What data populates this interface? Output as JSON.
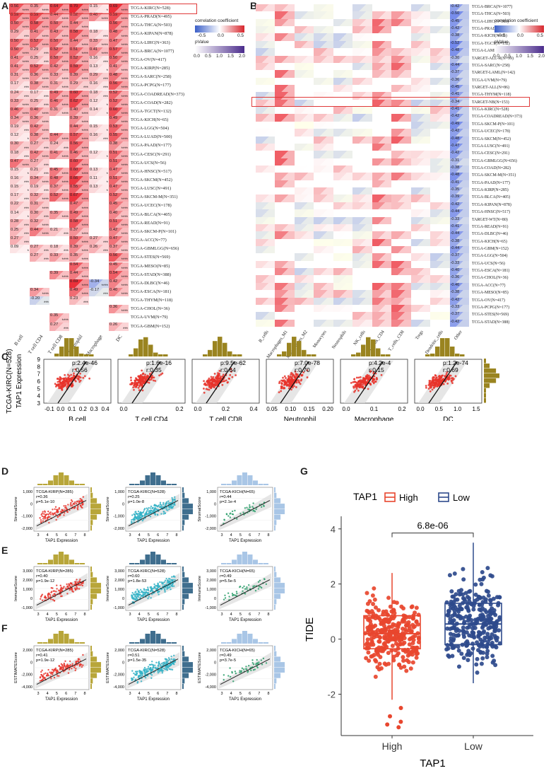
{
  "panels": {
    "A": "A",
    "B": "B",
    "C": "C",
    "D": "D",
    "E": "E",
    "F": "F",
    "G": "G"
  },
  "panelA": {
    "columns": [
      "B cell",
      "T cell CD4",
      "T cell CD8",
      "Neutrophil",
      "Macrophage",
      "DC"
    ],
    "rows": [
      "TCGA-KIRC(N=528)",
      "TCGA-PRAD(N=495)",
      "TCGA-THCA(N=503)",
      "TCGA-KIPAN(N=878)",
      "TCGA-LIHC(N=363)",
      "TCGA-BRCA(N=1077)",
      "TCGA-OV(N=417)",
      "TCGA-KIRP(N=285)",
      "TCGA-SARC(N=258)",
      "TCGA-PCPG(N=177)",
      "TCGA-COADREAD(N=373)",
      "TCGA-COAD(N=282)",
      "TCGA-TGCT(N=132)",
      "TCGA-KICH(N=65)",
      "TCGA-LGG(N=504)",
      "TCGA-LUAD(N=500)",
      "TCGA-PAAD(N=177)",
      "TCGA-CESC(N=291)",
      "TCGA-UCS(N=56)",
      "TCGA-HNSC(N=517)",
      "TCGA-SKCM(N=452)",
      "TCGA-LUSC(N=491)",
      "TCGA-SKCM-M(N=351)",
      "TCGA-UCEC(N=178)",
      "TCGA-BLCA(N=405)",
      "TCGA-READ(N=91)",
      "TCGA-SKCM-P(N=101)",
      "TCGA-ACC(N=77)",
      "TCGA-GBMLGG(N=656)",
      "TCGA-STES(N=569)",
      "TCGA-MESO(N=85)",
      "TCGA-STAD(N=388)",
      "TCGA-DLBC(N=46)",
      "TCGA-ESCA(N=181)",
      "TCGA-THYM(N=118)",
      "TCGA-CHOL(N=36)",
      "TCGA-UVM(N=79)",
      "TCGA-GBM(N=152)"
    ],
    "values": [
      [
        0.56,
        0.35,
        0.64,
        0.7,
        0.15,
        0.69
      ],
      [
        0.59,
        0.59,
        0.44,
        0.52,
        0.4,
        0.59
      ],
      [
        0.5,
        0.58,
        0.5,
        0.44,
        null,
        0.56
      ],
      [
        0.29,
        0.41,
        0.43,
        0.58,
        0.18,
        0.48
      ],
      [
        0.5,
        0.52,
        0.5,
        0.44,
        0.33,
        0.47
      ],
      [
        0.5,
        0.29,
        0.52,
        0.51,
        0.41,
        0.57
      ],
      [
        0.41,
        0.25,
        0.5,
        0.52,
        0.16,
        0.5
      ],
      [
        0.41,
        0.52,
        0.42,
        0.59,
        0.13,
        0.41
      ],
      [
        0.31,
        0.36,
        0.33,
        0.39,
        0.29,
        0.48
      ],
      [
        0.17,
        0.38,
        0.31,
        0.29,
        0.16,
        0.56
      ],
      [
        0.24,
        0.17,
        0.49,
        0.6,
        0.18,
        0.52
      ],
      [
        0.33,
        0.25,
        0.46,
        0.62,
        0.12,
        0.52
      ],
      [
        0.46,
        0.4,
        0.31,
        0.4,
        0.14,
        0.6
      ],
      [
        0.34,
        0.36,
        null,
        0.39,
        null,
        0.49
      ],
      [
        0.19,
        0.42,
        null,
        0.44,
        0.15,
        0.53
      ],
      [
        0.12,
        0.38,
        0.44,
        0.57,
        0.16,
        0.55
      ],
      [
        0.3,
        0.27,
        0.24,
        0.56,
        null,
        0.38
      ],
      [
        0.18,
        0.42,
        0.41,
        0.46,
        0.12,
        0.51
      ],
      [
        0.47,
        0.27,
        null,
        0.6,
        null,
        0.51
      ],
      [
        0.15,
        0.21,
        0.45,
        0.6,
        0.13,
        0.47
      ],
      [
        0.16,
        0.34,
        0.48,
        0.66,
        0.11,
        0.51
      ],
      [
        0.15,
        0.19,
        0.37,
        0.55,
        0.13,
        0.47
      ],
      [
        0.17,
        0.32,
        0.52,
        0.67,
        null,
        0.52
      ],
      [
        0.22,
        0.31,
        null,
        0.47,
        null,
        0.45
      ],
      [
        0.14,
        0.3,
        0.35,
        0.49,
        null,
        0.4
      ],
      [
        0.28,
        0.32,
        null,
        0.58,
        null,
        0.51
      ],
      [
        0.25,
        0.44,
        0.21,
        0.37,
        null,
        0.42
      ],
      [
        0.27,
        null,
        null,
        0.5,
        0.27,
        0.47
      ],
      [
        0.09,
        0.27,
        0.18,
        0.39,
        0.26,
        0.37
      ],
      [
        null,
        0.27,
        0.33,
        0.35,
        null,
        0.56
      ],
      [
        null,
        null,
        null,
        0.54,
        null,
        0.45
      ],
      [
        null,
        null,
        0.39,
        0.44,
        null,
        0.54
      ],
      [
        null,
        null,
        null,
        0.69,
        -0.34,
        0.42
      ],
      [
        null,
        0.34,
        null,
        0.49,
        -0.17,
        0.4
      ],
      [
        null,
        -0.2,
        null,
        0.23,
        null,
        null
      ],
      [
        null,
        null,
        null,
        null,
        null,
        0.36
      ],
      [
        null,
        null,
        0.35,
        null,
        null,
        null
      ],
      [
        null,
        null,
        0.27,
        null,
        null,
        0.26
      ]
    ],
    "legend": {
      "title": "correlation coefficient",
      "ticks": [
        "-0.5",
        "0.0",
        "0.5"
      ],
      "ptitle": "pValue",
      "pticks": [
        "0.0",
        "0.5",
        "1.0",
        "1.5",
        "2.0"
      ]
    }
  },
  "panelB": {
    "columns": [
      "B_cells",
      "Macrophages_M1",
      "Macrophages_M2",
      "Monocytes",
      "Neutrophils",
      "NK_cells",
      "T_cells_CD4",
      "T_cells_CD8",
      "Tregs",
      "Dendritic_cells",
      "Other"
    ],
    "rows": [
      "TCGA-BRCA(N=1077)",
      "TCGA-THCA(N=503)",
      "TCGA-LIHC(N=363)",
      "TCGA-PRAD(N=495)",
      "TCGA-KICH(N=65)",
      "TCGA-TGCT(N=132)",
      "TCGA-LAML(N=214)",
      "TARGET-ALL-R(N=99)",
      "TCGA-SARC(N=258)",
      "TARGET-LAML(N=142)",
      "TCGA-UVM(N=79)",
      "TARGET-ALL(N=86)",
      "TCGA-THYM(N=118)",
      "TARGET-NB(N=153)",
      "TCGA-KIRC(N=528)",
      "TCGA-COADREAD(N=373)",
      "TCGA-SKCM-P(N=101)",
      "TCGA-UCEC(N=178)",
      "TCGA-SKCM(N=452)",
      "TCGA-LUSC(N=491)",
      "TCGA-CESC(N=291)",
      "TCGA-GBMLGG(N=656)",
      "TCGA-COAD(N=282)",
      "TCGA-SKCM-M(N=351)",
      "TCGA-PAAD(N=177)",
      "TCGA-KIRP(N=285)",
      "TCGA-BLCA(N=405)",
      "TCGA-KIPAN(N=878)",
      "TCGA-HNSC(N=517)",
      "TARGET-WT(N=80)",
      "TCGA-READ(N=91)",
      "TCGA-DLBC(N=46)",
      "TCGA-KICH(N=65)",
      "TCGA-GBM(N=152)",
      "TCGA-LGG(N=504)",
      "TCGA-UCS(N=56)",
      "TCGA-ESCA(N=181)",
      "TCGA-CHOL(N=36)",
      "TCGA-ACC(N=77)",
      "TCGA-MESO(N=85)",
      "TCGA-OV(N=417)",
      "TCGA-PCPG(N=177)",
      "TCGA-STES(N=569)",
      "TCGA-STAD(N=388)"
    ],
    "otherCol": [
      "-0.42",
      "-0.50",
      "-0.45",
      "-0.42",
      "-0.38",
      "-0.52",
      "-0.48",
      "-0.30",
      "-0.44",
      "-0.37",
      "-0.36",
      "-0.45",
      "-0.41",
      "-0.34",
      "-0.41",
      "-0.42",
      "-0.49",
      "-0.42",
      "-0.48",
      "-0.47",
      "-0.42",
      "-0.31",
      "-0.38",
      "-0.48",
      "-0.41",
      "-0.35",
      "-0.39",
      "-0.42",
      "-0.44",
      "-0.33",
      "-0.41",
      "-0.44",
      "-0.38",
      "-0.44",
      "-0.37",
      "-0.33",
      "-0.40",
      "-0.36",
      "-0.46",
      "-0.38",
      "-0.42",
      "-0.33",
      "-0.37",
      "-0.42"
    ],
    "legend": {
      "title": "correlation coefficient",
      "ticks": [
        "-0.5",
        "0.0",
        "0.5"
      ],
      "ptitle": "pValue",
      "pticks": [
        "0.0",
        "0.5",
        "1.0",
        "1.5",
        "2.0"
      ]
    }
  },
  "panelC": {
    "ylabel1": "TCGA-KIRC(N=528)",
    "ylabel2": "TAP1 Expression",
    "yticks": [
      "3",
      "4",
      "5",
      "6",
      "7",
      "8",
      "9"
    ],
    "plots": [
      {
        "label": "B cell",
        "p": "p:2.4e-46",
        "r": "r:0.56",
        "ticks": [
          "-0.1",
          "0.0",
          "0.1",
          "0.2",
          "0.3",
          "0.4"
        ]
      },
      {
        "label": "T cell CD4",
        "p": "p:1.6e-16",
        "r": "r:0.35",
        "ticks": [
          "0.0",
          "0.2"
        ]
      },
      {
        "label": "T cell CD8",
        "p": "p:9.5e-62",
        "r": "r:0.64",
        "ticks": [
          "0.0",
          "0.2",
          "0.4"
        ]
      },
      {
        "label": "Neutrophil",
        "p": "p:7.0e-78",
        "r": "r:0.70",
        "ticks": [
          "0.05",
          "0.10",
          "0.15",
          "0.20"
        ]
      },
      {
        "label": "Macrophage",
        "p": "p:4.2e-4",
        "r": "r:0.15",
        "ticks": [
          "0.0",
          "0.1",
          "0.2"
        ]
      },
      {
        "label": "DC",
        "p": "p:1.2e-74",
        "r": "r:0.69",
        "ticks": [
          "0.0",
          "0.5",
          "1.0",
          "1.5"
        ]
      }
    ]
  },
  "panelDEF": {
    "xlabel": "TAP1 Expression",
    "rows": [
      {
        "ylabel": "StromalScore",
        "yticks": [
          "1,000",
          "0",
          "-1,000",
          "-2,000"
        ],
        "plots": [
          {
            "title": "TCGA-KIRP(N=285)",
            "r": "r=0.36",
            "p": "p=5.1e-10"
          },
          {
            "title": "TCGA-KIRC(N=528)",
            "r": "r=0.25",
            "p": "p=1.0e-8"
          },
          {
            "title": "TCGA-KICH(N=65)",
            "r": "r=0.44",
            "p": "p=2.1e-4"
          }
        ]
      },
      {
        "ylabel": "ImmuneScore",
        "yticks": [
          "3,000",
          "2,000",
          "1,000",
          "0",
          "-1,000"
        ],
        "plots": [
          {
            "title": "TCGA-KIRP(N=285)",
            "r": "r=0.40",
            "p": "p=1.9e-12"
          },
          {
            "title": "TCGA-KIRC(N=528)",
            "r": "r=0.60",
            "p": "p=1.8e-53"
          },
          {
            "title": "TCGA-KICH(N=65)",
            "r": "r=0.49",
            "p": "p=5.5e-5"
          }
        ]
      },
      {
        "ylabel": "ESTIMATEScore",
        "yticks": [
          "2,000",
          "0",
          "-2,000",
          "-4,000"
        ],
        "plots": [
          {
            "title": "TCGA-KIRP(N=285)",
            "r": "r=0.41",
            "p": "p=1.9e-12"
          },
          {
            "title": "TCGA-KIRC(N=528)",
            "r": "r=0.51",
            "p": "p=1.5e-35"
          },
          {
            "title": "TCGA-KICH(N=65)",
            "r": "r=0.49",
            "p": "p=3.7e-5"
          }
        ]
      }
    ],
    "xticks": [
      "3",
      "4",
      "5",
      "6",
      "7",
      "8"
    ]
  },
  "chart_data": {
    "type": "box",
    "title": "",
    "legend_title": "TAP1",
    "categories": [
      "High",
      "Low"
    ],
    "xlabel": "TAP1",
    "ylabel": "TIDE",
    "ylim": [
      -3.5,
      4.2
    ],
    "yticks": [
      -2,
      0,
      2,
      4
    ],
    "pvalue": "6.8e-06",
    "series": [
      {
        "name": "High",
        "color": "#e8462e",
        "q1": -0.35,
        "median": 0.2,
        "q3": 0.85,
        "whisker_low": -2.2,
        "whisker_high": 2.4,
        "outliers": [
          -2.5,
          -2.8,
          -3.1,
          -3.2,
          -3.0
        ]
      },
      {
        "name": "Low",
        "color": "#2e4a8c",
        "q1": -0.2,
        "median": 0.55,
        "q3": 1.3,
        "whisker_low": -1.6,
        "whisker_high": 3.5,
        "outliers": []
      }
    ]
  }
}
